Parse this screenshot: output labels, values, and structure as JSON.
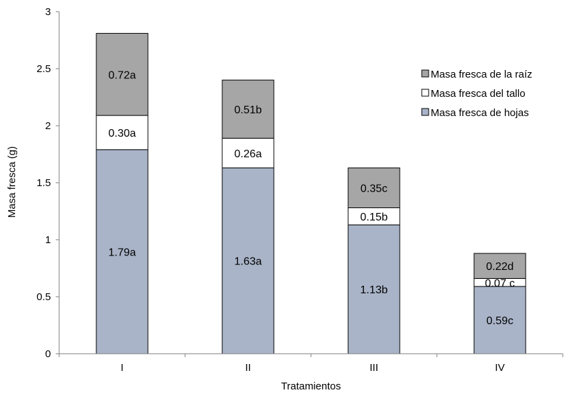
{
  "chart_data": {
    "type": "bar",
    "stacked": true,
    "title": "",
    "xlabel": "Tratamientos",
    "ylabel": "Masa fresca (g)",
    "ylim": [
      0,
      3
    ],
    "yticks": [
      "0",
      "0.5",
      "1",
      "1.5",
      "2",
      "2.5",
      "3"
    ],
    "grid": false,
    "legend_position": "right",
    "categories": [
      "I",
      "II",
      "III",
      "IV"
    ],
    "series": [
      {
        "name": "Masa fresca de hojas",
        "color": "#a9b4c8",
        "values": [
          1.79,
          1.63,
          1.13,
          0.59
        ],
        "labels": [
          "1.79a",
          "1.63a",
          "1.13b",
          "0.59c"
        ]
      },
      {
        "name": "Masa fresca del tallo",
        "color": "#ffffff",
        "values": [
          0.3,
          0.26,
          0.15,
          0.07
        ],
        "labels": [
          "0.30a",
          "0.26a",
          "0.15b",
          "0.07 c"
        ]
      },
      {
        "name": "Masa fresca de la raíz",
        "color": "#a6a6a6",
        "values": [
          0.72,
          0.51,
          0.35,
          0.22
        ],
        "labels": [
          "0.72a",
          "0.51b",
          "0.35c",
          "0.22d"
        ]
      }
    ],
    "legend_order": [
      "Masa fresca de la raíz",
      "Masa fresca del tallo",
      "Masa fresca de hojas"
    ]
  }
}
